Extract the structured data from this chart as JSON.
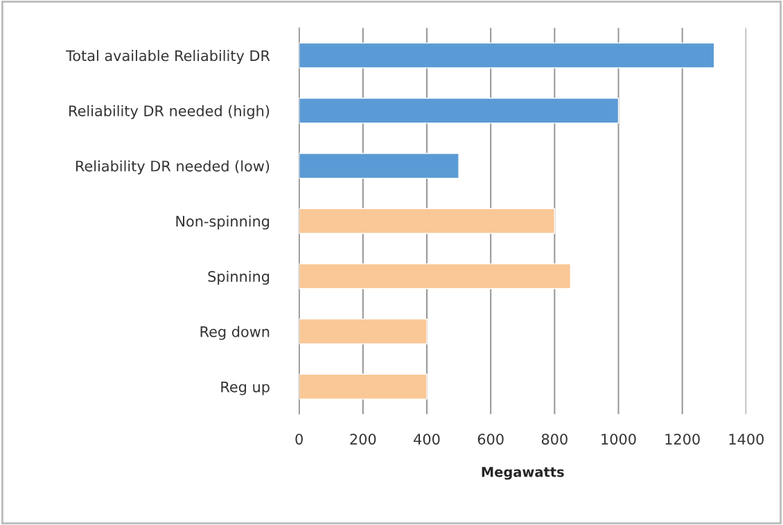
{
  "chart_data": {
    "type": "bar",
    "orientation": "horizontal",
    "xlabel": "Megawatts",
    "categories": [
      "Total available Reliability DR",
      "Reliability DR needed (high)",
      "Reliability DR needed (low)",
      "Non-spinning",
      "Spinning",
      "Reg down",
      "Reg up"
    ],
    "values": [
      1300,
      1000,
      500,
      800,
      850,
      400,
      400
    ],
    "colors": [
      "#5b9bd5",
      "#5b9bd5",
      "#5b9bd5",
      "#fac796",
      "#fac796",
      "#fac796",
      "#fac796"
    ],
    "xlim": [
      0,
      1400
    ],
    "xticks": [
      0,
      200,
      400,
      600,
      800,
      1000,
      1200,
      1400
    ],
    "grid": "x"
  }
}
